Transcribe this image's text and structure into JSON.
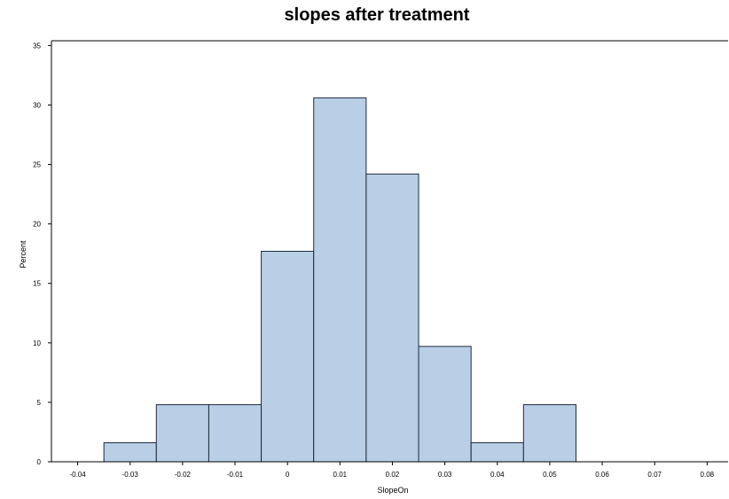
{
  "chart_data": {
    "type": "bar",
    "title": "slopes after treatment",
    "xlabel": "SlopeOn",
    "ylabel": "Percent",
    "x_ticks": [
      "-0.04",
      "-0.03",
      "-0.02",
      "-0.01",
      "0",
      "0.01",
      "0.02",
      "0.03",
      "0.04",
      "0.05",
      "0.06",
      "0.07",
      "0.08"
    ],
    "y_ticks": [
      "0",
      "5",
      "10",
      "15",
      "20",
      "25",
      "30",
      "35"
    ],
    "xlim": [
      -0.045,
      0.084
    ],
    "ylim": [
      0,
      35.4
    ],
    "bin_width": 0.01,
    "bins": [
      {
        "center": -0.03,
        "value": 1.6
      },
      {
        "center": -0.02,
        "value": 4.8
      },
      {
        "center": -0.01,
        "value": 4.8
      },
      {
        "center": 0.0,
        "value": 17.7
      },
      {
        "center": 0.01,
        "value": 30.6
      },
      {
        "center": 0.02,
        "value": 24.2
      },
      {
        "center": 0.03,
        "value": 9.7
      },
      {
        "center": 0.04,
        "value": 1.6
      },
      {
        "center": 0.05,
        "value": 4.8
      }
    ],
    "bar_color": "#b9cfe6",
    "edge_color": "#1f2a3a",
    "grid": false,
    "legend": "none"
  }
}
